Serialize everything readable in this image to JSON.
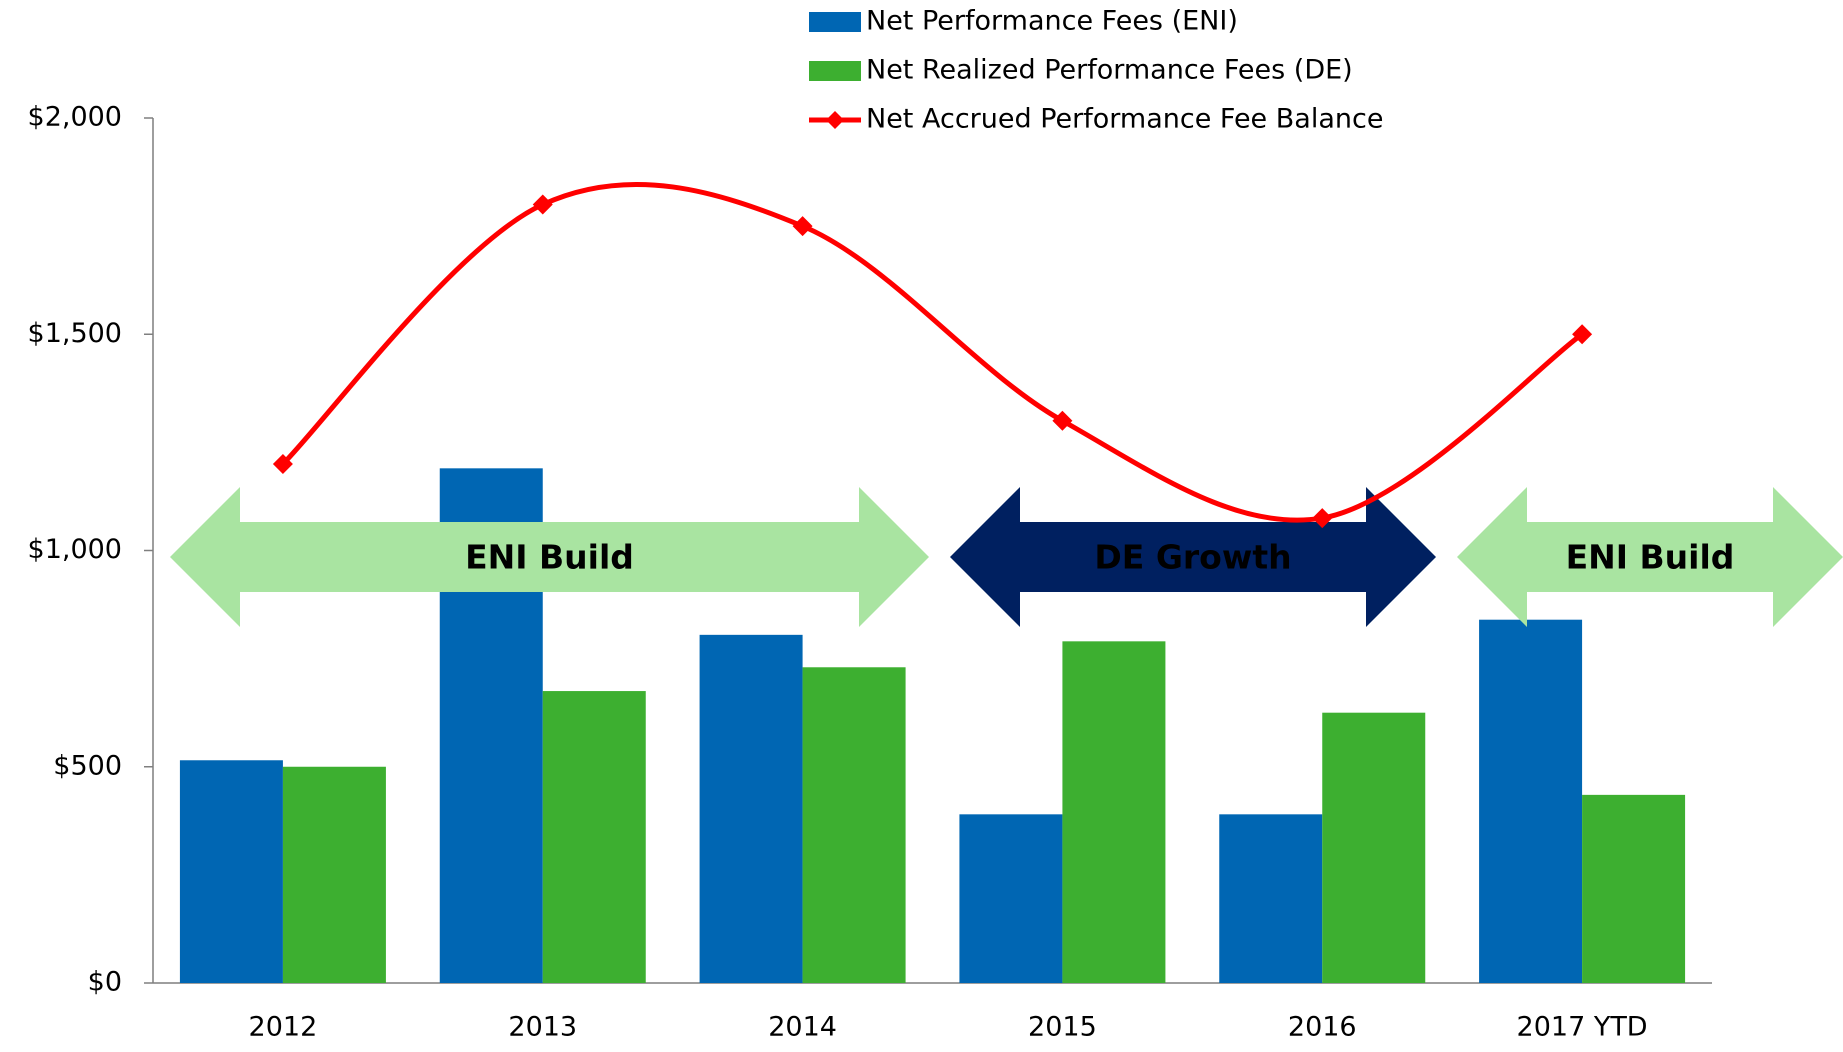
{
  "chart_data": {
    "type": "bar",
    "categories": [
      "2012",
      "2013",
      "2014",
      "2015",
      "2016",
      "2017 YTD"
    ],
    "series": [
      {
        "name": "Net Performance Fees (ENI)",
        "color": "#0066b3",
        "values": [
          515,
          1190,
          805,
          390,
          390,
          840
        ]
      },
      {
        "name": "Net Realized Performance Fees (DE)",
        "color": "#3daf30",
        "values": [
          500,
          675,
          730,
          790,
          625,
          435
        ]
      },
      {
        "name": "Net Accrued Performance Fee Balance",
        "type": "line",
        "color": "#ff0000",
        "values": [
          1200,
          1800,
          1750,
          1300,
          1075,
          1500
        ]
      }
    ],
    "ylim": [
      0,
      2000
    ],
    "yticks": [
      {
        "value": 0,
        "label": "$0"
      },
      {
        "value": 500,
        "label": "$500"
      },
      {
        "value": 1000,
        "label": "$1,000"
      },
      {
        "value": 1500,
        "label": "$1,500"
      },
      {
        "value": 2000,
        "label": "$2,000"
      }
    ],
    "grid": false,
    "legend": "top",
    "annotations": [
      {
        "text": "ENI Build",
        "color": "#a9e4a1",
        "text_color": "#002060"
      },
      {
        "text": "DE Growth",
        "color": "#002060",
        "text_color": "#a9e4a1"
      },
      {
        "text": "ENI Build",
        "color": "#a9e4a1",
        "text_color": "#002060"
      }
    ]
  }
}
